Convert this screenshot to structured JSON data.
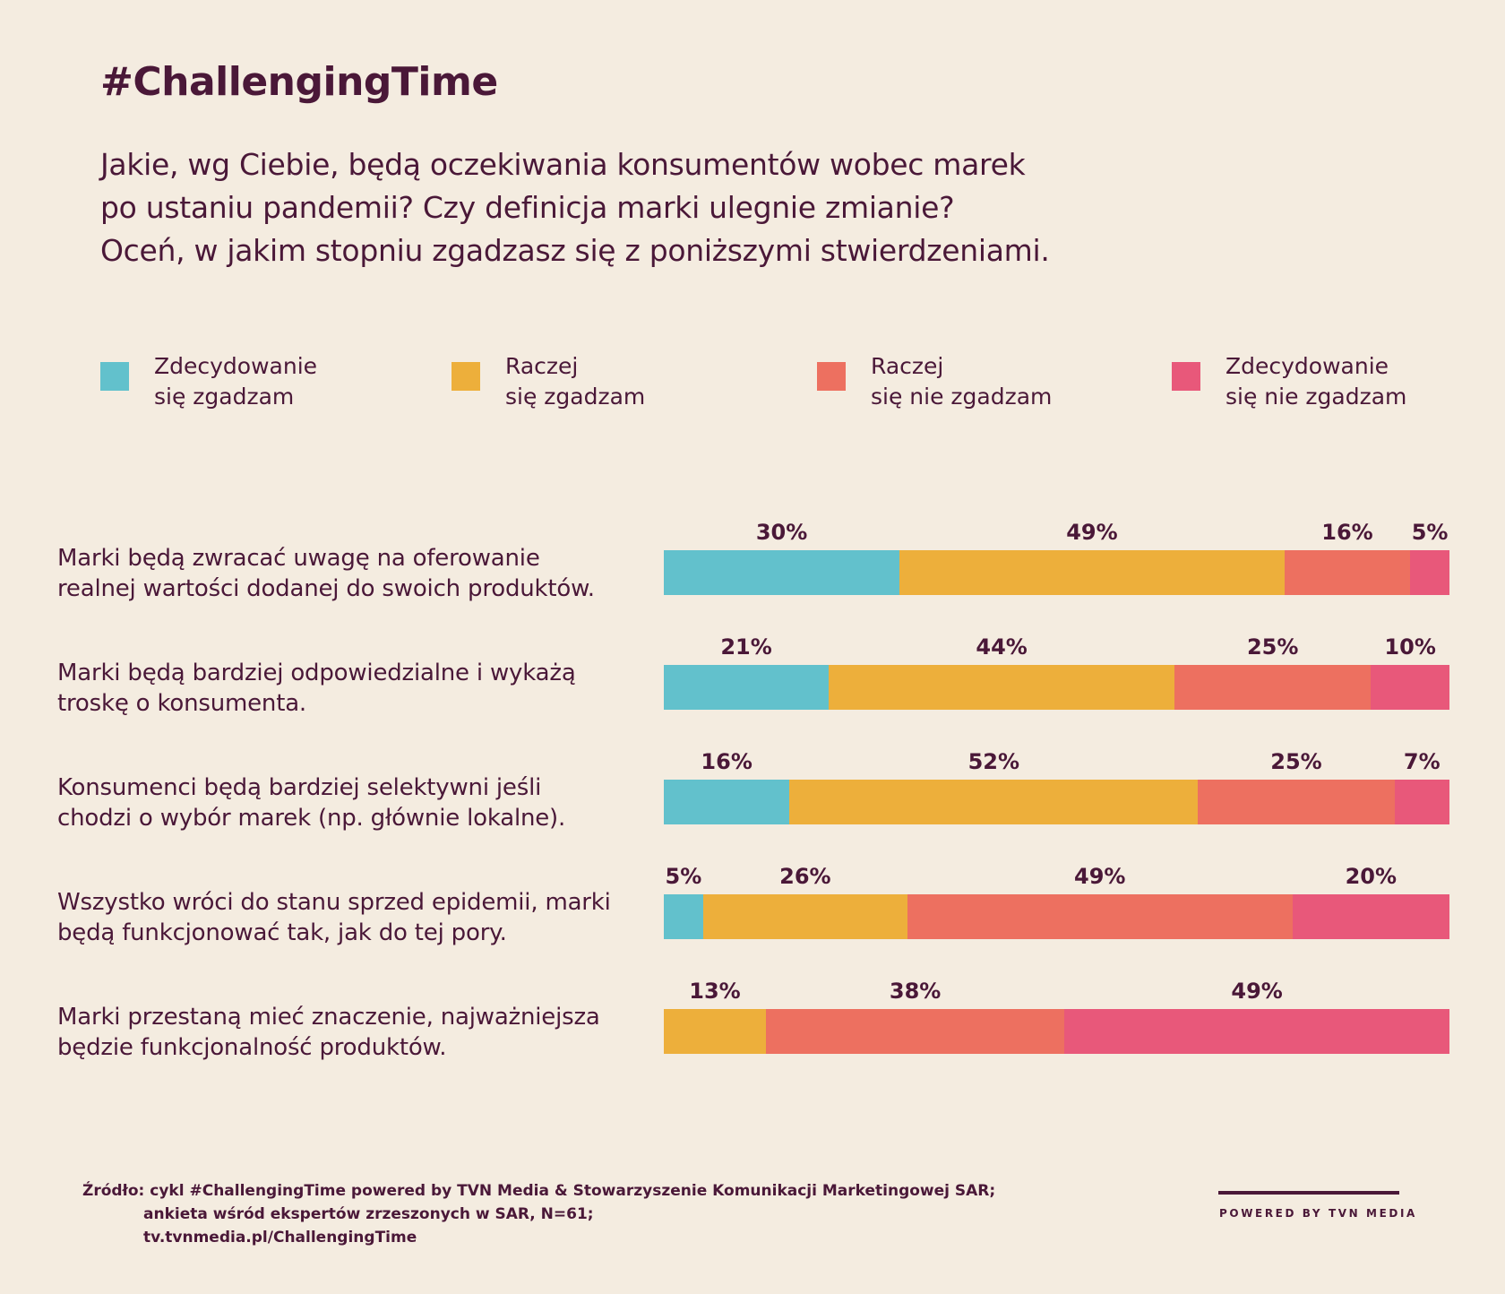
{
  "header": {
    "title": "#ChallengingTime",
    "subtitle_lines": [
      "Jakie, wg Ciebie, będą oczekiwania konsumentów wobec marek",
      "po ustaniu pandemii? Czy definicja marki ulegnie zmianie?",
      "Oceń, w jakim stopniu zgadzasz się z poniższymi stwierdzeniami."
    ]
  },
  "legend": [
    {
      "line1": "Zdecydowanie",
      "line2": "się zgadzam",
      "color": "#62c1cc"
    },
    {
      "line1": "Raczej",
      "line2": "się zgadzam",
      "color": "#edaf3b"
    },
    {
      "line1": "Raczej",
      "line2": "się nie zgadzam",
      "color": "#ed7060"
    },
    {
      "line1": "Zdecydowanie",
      "line2": "się nie zgadzam",
      "color": "#e8587a"
    }
  ],
  "chart_data": {
    "type": "bar",
    "orientation": "horizontal",
    "stacked": true,
    "value_unit": "%",
    "categories": [
      "Marki będą zwracać uwagę na oferowanie realnej wartości dodanej do swoich produktów.",
      "Marki będą bardziej odpowiedzialne i wykażą troskę o konsumenta.",
      "Konsumenci będą bardziej selektywni jeśli chodzi o wybór marek (np. głównie lokalne).",
      "Wszystko wróci do stanu sprzed epidemii, marki będą funkcjonować tak, jak do tej pory.",
      "Marki przestaną mieć znaczenie, najważniejsza będzie funkcjonalność produktów."
    ],
    "category_lines": [
      [
        "Marki będą zwracać uwagę na oferowanie",
        "realnej wartości dodanej do swoich produktów."
      ],
      [
        "Marki będą bardziej odpowiedzialne i wykażą",
        "troskę o konsumenta."
      ],
      [
        "Konsumenci będą bardziej selektywni jeśli",
        "chodzi o wybór marek (np. głównie lokalne)."
      ],
      [
        "Wszystko wróci do stanu sprzed epidemii, marki",
        "będą funkcjonować tak, jak do tej pory."
      ],
      [
        "Marki przestaną mieć znaczenie, najważniejsza",
        "będzie funkcjonalność produktów."
      ]
    ],
    "series": [
      {
        "name": "Zdecydowanie się zgadzam",
        "color": "#62c1cc",
        "values": [
          30,
          21,
          16,
          5,
          0
        ]
      },
      {
        "name": "Raczej się zgadzam",
        "color": "#edaf3b",
        "values": [
          49,
          44,
          52,
          26,
          13
        ]
      },
      {
        "name": "Raczej się nie zgadzam",
        "color": "#ed7060",
        "values": [
          16,
          25,
          25,
          49,
          38
        ]
      },
      {
        "name": "Zdecydowanie się nie zgadzam",
        "color": "#e8587a",
        "values": [
          5,
          10,
          7,
          20,
          49
        ]
      }
    ],
    "xlim": [
      0,
      100
    ],
    "legend_position": "top",
    "grid": false
  },
  "footer": {
    "source_lines": [
      "Źródło: cykl #ChallengingTime powered by TVN Media & Stowarzyszenie Komunikacji Marketingowej SAR;",
      "ankieta wśród ekspertów zrzeszonych w SAR, N=61;",
      "tv.tvnmedia.pl/ChallengingTime"
    ],
    "powered_by": "POWERED BY TVN MEDIA"
  }
}
